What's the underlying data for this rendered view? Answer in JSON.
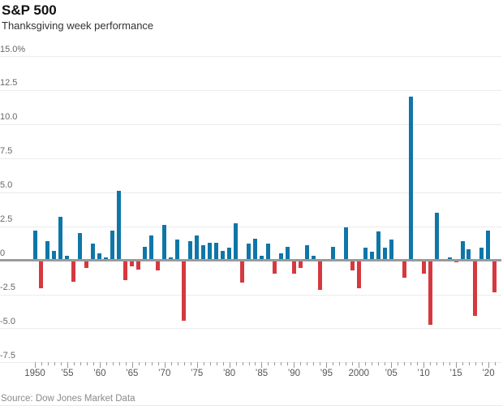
{
  "header": {
    "title": "S&P 500",
    "subtitle": "Thanksgiving week performance"
  },
  "source": {
    "text": "Source: Dow Jones Market Data"
  },
  "colors": {
    "positive_bar": "#0f76a8",
    "negative_bar": "#d5393f",
    "zero_line": "#9a9a9a",
    "gridline": "#ececec",
    "tick": "#999999",
    "y_label": "#666666",
    "x_label": "#555555"
  },
  "chart_data": {
    "type": "bar",
    "title": "S&P 500",
    "subtitle": "Thanksgiving week performance",
    "unit": "percent",
    "grid": true,
    "legend": false,
    "ylim": [
      -7.5,
      15.0
    ],
    "ytick_step": 2.5,
    "ytick_labels": [
      "15.0%",
      "12.5",
      "10.0",
      "7.5",
      "5.0",
      "2.5",
      "0",
      "-2.5",
      "-5.0",
      "-7.5"
    ],
    "xtick_labels": [
      "1950",
      "’55",
      "’60",
      "’65",
      "’70",
      "’75",
      "’80",
      "’85",
      "’90",
      "’95",
      "2000",
      "’05",
      "’10",
      "’15",
      "’20"
    ],
    "xtick_label_years": [
      1950,
      1955,
      1960,
      1965,
      1970,
      1975,
      1980,
      1985,
      1990,
      1995,
      2000,
      2005,
      2010,
      2015,
      2020
    ],
    "start_year": 1950,
    "end_year": 2021,
    "values": [
      2.2,
      -2.0,
      1.4,
      0.7,
      3.2,
      0.3,
      -1.5,
      2.0,
      -0.5,
      1.2,
      0.5,
      0.2,
      2.2,
      5.1,
      -1.4,
      -0.4,
      -0.6,
      1.0,
      1.8,
      -0.7,
      2.6,
      0.2,
      1.5,
      -4.4,
      1.4,
      1.8,
      1.1,
      1.3,
      1.3,
      0.7,
      0.9,
      2.7,
      -1.6,
      1.2,
      1.6,
      0.3,
      1.2,
      -0.9,
      0.5,
      1.0,
      -0.9,
      -0.5,
      1.1,
      0.3,
      -2.1,
      0.0,
      1.0,
      0.0,
      2.4,
      -0.7,
      -2.0,
      0.9,
      0.6,
      2.1,
      0.9,
      1.5,
      0.0,
      -1.2,
      12.0,
      0.1,
      -0.9,
      -4.7,
      3.5,
      0.1,
      0.2,
      -0.1,
      1.4,
      0.8,
      -4.0,
      0.9,
      2.2,
      -2.3
    ]
  }
}
